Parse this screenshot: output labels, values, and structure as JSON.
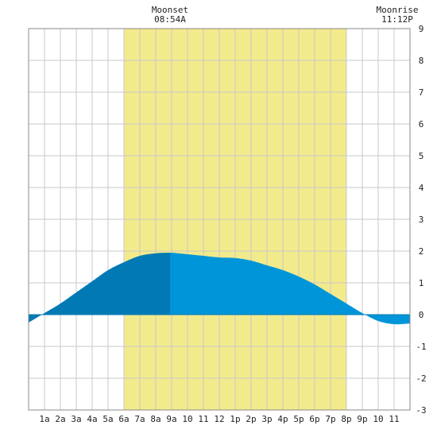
{
  "chart_data": {
    "type": "area",
    "title": "",
    "xlabel": "",
    "ylabel": "",
    "x_tick_labels": [
      "1a",
      "2a",
      "3a",
      "4a",
      "5a",
      "6a",
      "7a",
      "8a",
      "9a",
      "10",
      "11",
      "12",
      "1p",
      "2p",
      "3p",
      "4p",
      "5p",
      "6p",
      "7p",
      "8p",
      "9p",
      "10",
      "11"
    ],
    "y_ticks": [
      -3,
      -2,
      -1,
      0,
      1,
      2,
      3,
      4,
      5,
      6,
      7,
      8,
      9
    ],
    "xlim": [
      0,
      24
    ],
    "ylim": [
      -3,
      9
    ],
    "grid": true,
    "daylight": {
      "start_hour": 6.0,
      "end_hour": 20.0,
      "color": "#f3ea8c"
    },
    "annotations": [
      {
        "name": "moonset",
        "label": "Moonset",
        "time": "08:54A",
        "hour": 8.9
      },
      {
        "name": "moonrise",
        "label": "Moonrise",
        "time": "11:12P",
        "hour": 23.2
      }
    ],
    "colors": {
      "before_moonset_fill": "#0079b5",
      "after_moonset_fill": "#0095d8",
      "zero_line": "#0079b5",
      "grid": "#c8c8c8",
      "background": "#ffffff"
    },
    "series": [
      {
        "x": [
          0,
          1,
          2,
          3,
          4,
          5,
          6,
          7,
          8,
          8.9,
          9,
          10,
          11,
          12,
          13,
          14,
          15,
          16,
          17,
          18,
          19,
          20,
          21,
          22,
          23,
          24
        ],
        "values": [
          -0.25,
          0.05,
          0.35,
          0.7,
          1.05,
          1.4,
          1.65,
          1.85,
          1.93,
          1.95,
          1.95,
          1.9,
          1.85,
          1.8,
          1.78,
          1.7,
          1.55,
          1.4,
          1.2,
          0.95,
          0.65,
          0.35,
          0.05,
          -0.2,
          -0.3,
          -0.28
        ]
      }
    ]
  }
}
